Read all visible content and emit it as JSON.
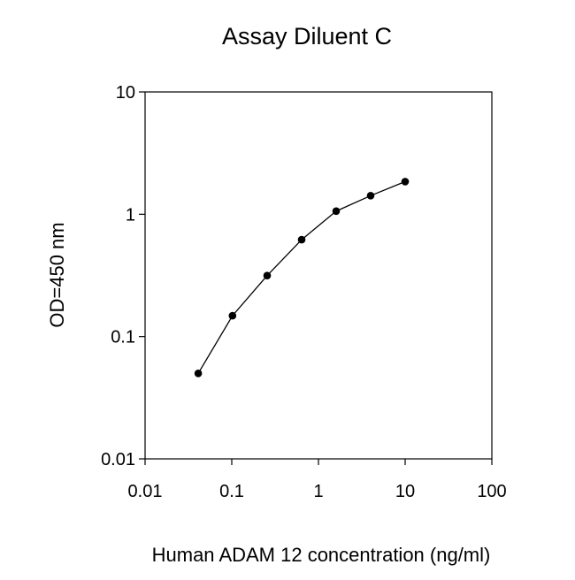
{
  "chart_data": {
    "type": "line",
    "title": "Assay Diluent C",
    "xlabel": "Human ADAM 12 concentration (ng/ml)",
    "ylabel": "OD=450 nm",
    "x_scale": "log",
    "y_scale": "log",
    "xlim": [
      0.01,
      100
    ],
    "ylim": [
      0.01,
      10
    ],
    "x_ticks": [
      {
        "value": 0.01,
        "label": "0.01"
      },
      {
        "value": 0.1,
        "label": "0.1"
      },
      {
        "value": 1,
        "label": "1"
      },
      {
        "value": 10,
        "label": "10"
      },
      {
        "value": 100,
        "label": "100"
      }
    ],
    "y_ticks": [
      {
        "value": 0.01,
        "label": "0.01"
      },
      {
        "value": 0.1,
        "label": "0.1"
      },
      {
        "value": 1,
        "label": "1"
      },
      {
        "value": 10,
        "label": "10"
      }
    ],
    "grid": false,
    "legend": "none",
    "series": [
      {
        "color": "#000000",
        "marker": "circle",
        "x": [
          0.041,
          0.102,
          0.256,
          0.64,
          1.6,
          4.0,
          10.0
        ],
        "y": [
          0.05,
          0.148,
          0.315,
          0.62,
          1.06,
          1.42,
          1.85
        ]
      }
    ]
  }
}
